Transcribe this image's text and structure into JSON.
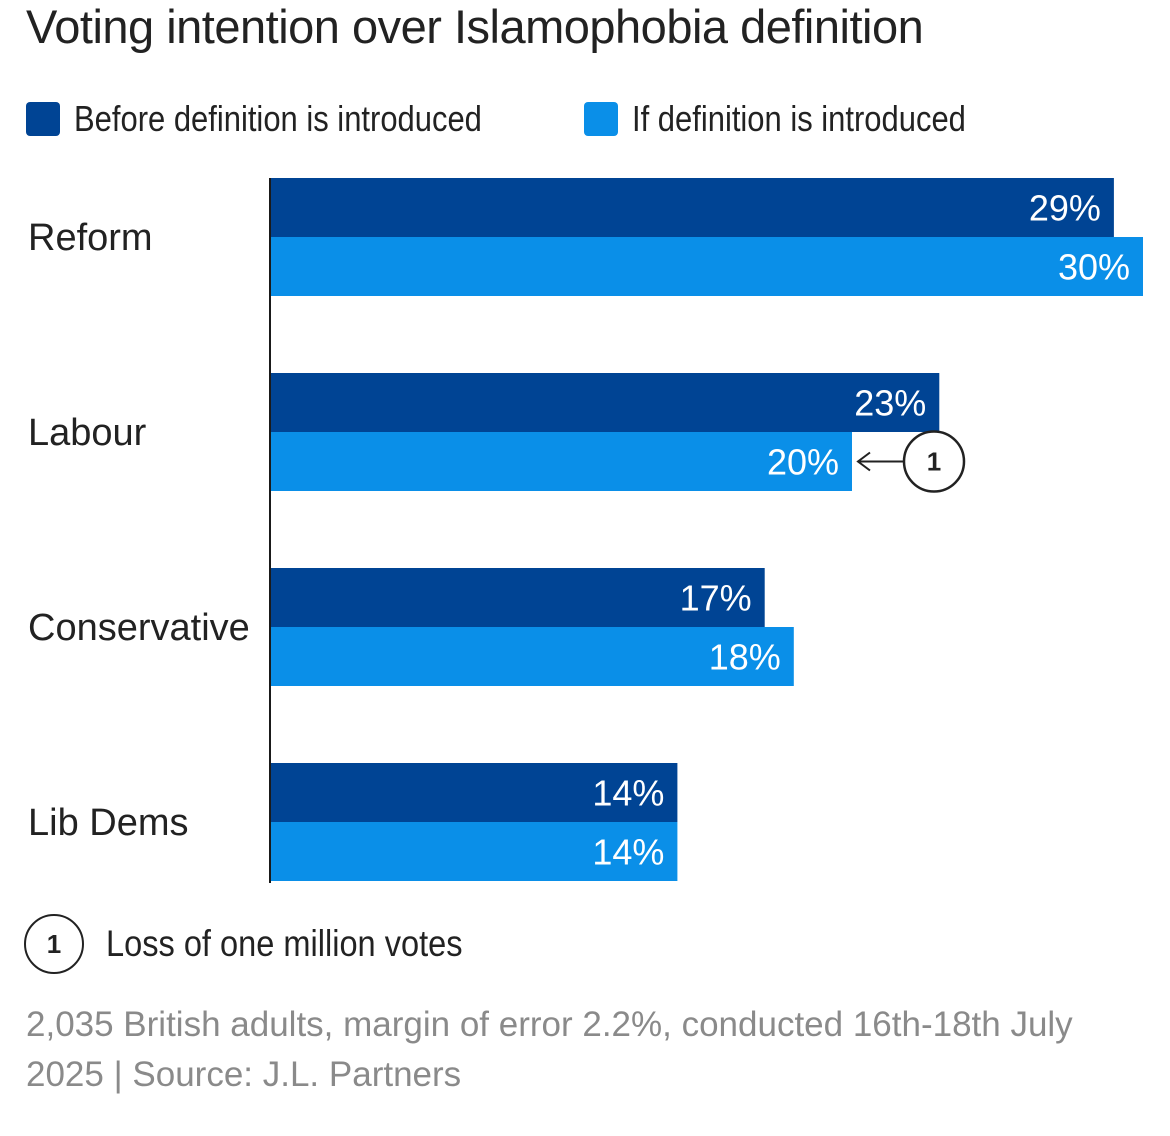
{
  "colors": {
    "before": "#004494",
    "after": "#0A8FE8",
    "axis": "#1a1a1a",
    "annotation": "#222222"
  },
  "legend": {
    "items": [
      {
        "label": "Before definition is introduced",
        "color": "#004494"
      },
      {
        "label": "If definition is introduced",
        "color": "#0A8FE8"
      }
    ]
  },
  "annotation": {
    "number": "1",
    "category": "Labour",
    "series": "If definition is introduced",
    "text": "Loss of one million votes"
  },
  "source_text": "2,035 British adults, margin of error 2.2%, conducted 16th-18th July 2025 | Source: J.L. Partners",
  "chart_data": {
    "type": "bar",
    "orientation": "horizontal",
    "title": "Voting intention over Islamophobia definition",
    "categories": [
      "Reform",
      "Labour",
      "Conservative",
      "Lib Dems"
    ],
    "series": [
      {
        "name": "Before definition is introduced",
        "values": [
          29,
          23,
          17,
          14
        ],
        "labels": [
          "29%",
          "23%",
          "17%",
          "14%"
        ]
      },
      {
        "name": "If definition is introduced",
        "values": [
          30,
          20,
          18,
          14
        ],
        "labels": [
          "30%",
          "20%",
          "18%",
          "14%"
        ]
      }
    ],
    "unit": "%",
    "xlim": [
      0,
      30
    ],
    "xlabel": "",
    "ylabel": "",
    "grid": false,
    "legend_position": "top-left"
  }
}
